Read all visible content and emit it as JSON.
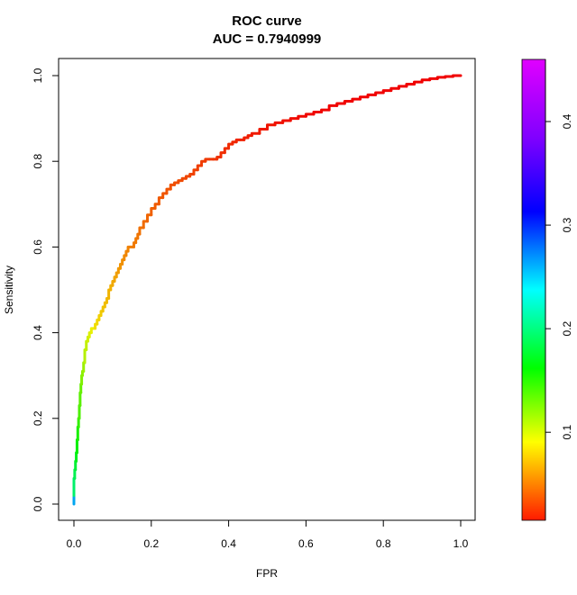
{
  "chart_data": {
    "type": "line",
    "title": "ROC curve",
    "subtitle": "AUC = 0.7940999",
    "xlabel": "FPR",
    "ylabel": "Sensitivity",
    "xlim": [
      0,
      1
    ],
    "ylim": [
      0,
      1
    ],
    "x_ticks": [
      "0.0",
      "0.2",
      "0.4",
      "0.6",
      "0.8",
      "1.0"
    ],
    "y_ticks": [
      "0.0",
      "0.2",
      "0.4",
      "0.6",
      "0.8",
      "1.0"
    ],
    "grid": false,
    "colorbar": {
      "range": [
        0.015,
        0.46
      ],
      "ticks": [
        "0.1",
        "0.2",
        "0.3",
        "0.4"
      ],
      "tick_values": [
        0.1,
        0.2,
        0.3,
        0.4
      ],
      "colormap": "rainbow (red to magenta)"
    },
    "series": [
      {
        "x": [
          0.0,
          0.0,
          0.002,
          0.004,
          0.006,
          0.008,
          0.01,
          0.012,
          0.014,
          0.016,
          0.018,
          0.02,
          0.022,
          0.025,
          0.028,
          0.032,
          0.036,
          0.04,
          0.045,
          0.05,
          0.055,
          0.06,
          0.065,
          0.07,
          0.075,
          0.08,
          0.085,
          0.09,
          0.095,
          0.1,
          0.105,
          0.11,
          0.115,
          0.12,
          0.125,
          0.13,
          0.135,
          0.14,
          0.145,
          0.15,
          0.155,
          0.16,
          0.165,
          0.17,
          0.18,
          0.19,
          0.2,
          0.21,
          0.22,
          0.23,
          0.24,
          0.25,
          0.26,
          0.27,
          0.28,
          0.29,
          0.3,
          0.31,
          0.32,
          0.33,
          0.34,
          0.35,
          0.36,
          0.37,
          0.38,
          0.39,
          0.4,
          0.41,
          0.42,
          0.43,
          0.44,
          0.45,
          0.46,
          0.48,
          0.5,
          0.52,
          0.54,
          0.56,
          0.58,
          0.6,
          0.62,
          0.64,
          0.66,
          0.68,
          0.7,
          0.72,
          0.74,
          0.76,
          0.78,
          0.8,
          0.82,
          0.84,
          0.86,
          0.88,
          0.9,
          0.92,
          0.94,
          0.96,
          0.98,
          1.0
        ],
        "y": [
          0.0,
          0.02,
          0.06,
          0.08,
          0.1,
          0.12,
          0.15,
          0.18,
          0.2,
          0.23,
          0.26,
          0.28,
          0.3,
          0.31,
          0.33,
          0.36,
          0.38,
          0.39,
          0.4,
          0.41,
          0.41,
          0.42,
          0.43,
          0.44,
          0.45,
          0.46,
          0.47,
          0.48,
          0.5,
          0.51,
          0.52,
          0.53,
          0.54,
          0.55,
          0.56,
          0.57,
          0.58,
          0.59,
          0.6,
          0.6,
          0.6,
          0.61,
          0.62,
          0.63,
          0.645,
          0.66,
          0.675,
          0.69,
          0.7,
          0.715,
          0.725,
          0.735,
          0.745,
          0.75,
          0.755,
          0.76,
          0.765,
          0.77,
          0.78,
          0.79,
          0.8,
          0.805,
          0.805,
          0.805,
          0.81,
          0.82,
          0.83,
          0.84,
          0.845,
          0.85,
          0.85,
          0.855,
          0.86,
          0.865,
          0.875,
          0.885,
          0.89,
          0.895,
          0.9,
          0.905,
          0.91,
          0.915,
          0.92,
          0.93,
          0.935,
          0.94,
          0.945,
          0.95,
          0.955,
          0.96,
          0.965,
          0.97,
          0.975,
          0.98,
          0.985,
          0.99,
          0.993,
          0.996,
          0.998,
          1.0
        ],
        "cutoff": [
          0.46,
          0.32,
          0.24,
          0.23,
          0.22,
          0.21,
          0.2,
          0.19,
          0.18,
          0.17,
          0.165,
          0.16,
          0.15,
          0.145,
          0.14,
          0.13,
          0.125,
          0.12,
          0.115,
          0.11,
          0.105,
          0.1,
          0.098,
          0.095,
          0.093,
          0.09,
          0.088,
          0.086,
          0.084,
          0.082,
          0.08,
          0.078,
          0.076,
          0.074,
          0.072,
          0.07,
          0.068,
          0.066,
          0.065,
          0.064,
          0.063,
          0.062,
          0.061,
          0.06,
          0.058,
          0.056,
          0.054,
          0.052,
          0.05,
          0.049,
          0.048,
          0.047,
          0.046,
          0.045,
          0.044,
          0.043,
          0.042,
          0.041,
          0.04,
          0.039,
          0.038,
          0.037,
          0.036,
          0.035,
          0.034,
          0.033,
          0.032,
          0.031,
          0.03,
          0.029,
          0.028,
          0.027,
          0.026,
          0.025,
          0.024,
          0.023,
          0.022,
          0.021,
          0.02,
          0.019,
          0.018,
          0.017,
          0.017,
          0.016,
          0.016,
          0.016,
          0.015,
          0.015,
          0.015,
          0.015,
          0.015,
          0.015,
          0.015,
          0.015,
          0.015,
          0.015,
          0.015,
          0.015,
          0.015,
          0.015
        ]
      }
    ]
  }
}
